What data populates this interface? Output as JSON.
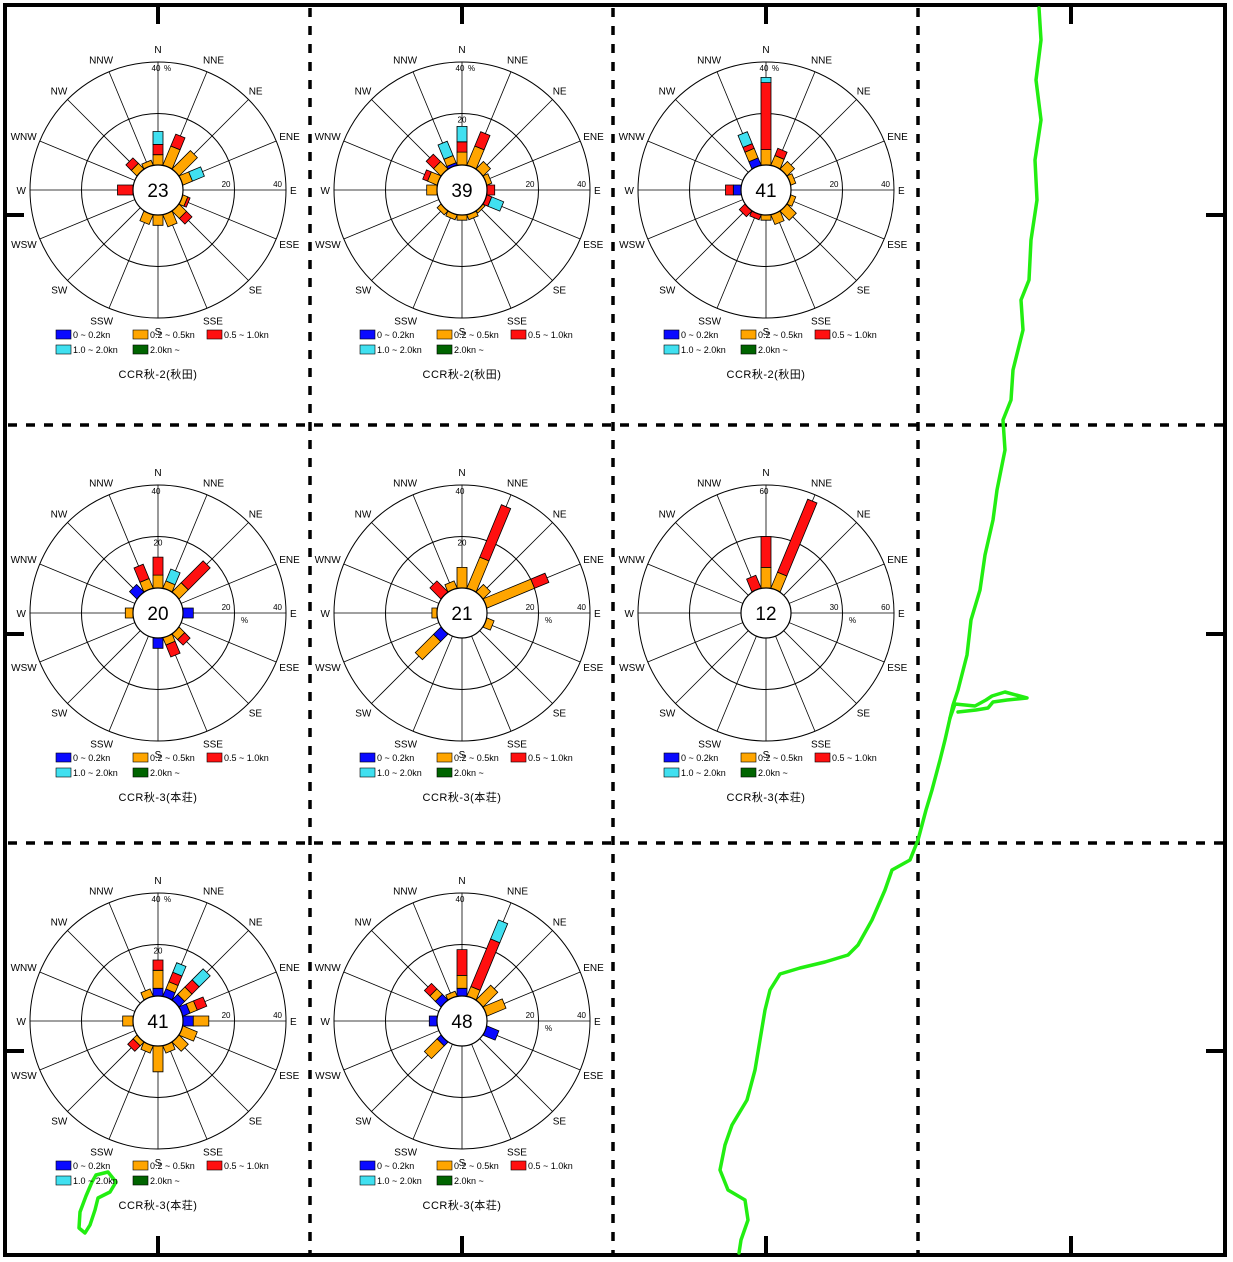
{
  "colors": {
    "frame": "#000000",
    "coast": "#22ee11",
    "classes": [
      "#0a0aff",
      "#ffa500",
      "#ff1010",
      "#40e0f0",
      "#006400"
    ]
  },
  "legend": {
    "items": [
      "0 ~ 0.2kn",
      "0.2 ~ 0.5kn",
      "0.5 ~ 1.0kn",
      "1.0 ~ 2.0kn",
      "2.0kn ~"
    ]
  },
  "directions": [
    "N",
    "NNE",
    "NE",
    "ENE",
    "E",
    "ESE",
    "SE",
    "SSE",
    "S",
    "SSW",
    "SW",
    "WSW",
    "W",
    "WNW",
    "NW",
    "NNW"
  ],
  "chart_data": [
    {
      "type": "wind-rose",
      "station": "CCR秋-2(秋田)",
      "center": "23",
      "rmax": 40,
      "ticks": [
        "20",
        "40"
      ],
      "ticks_top": [
        "40"
      ],
      "unit": "%",
      "unit_pos": "top",
      "series": [
        [
          0,
          0,
          0,
          0,
          0,
          0,
          0,
          0,
          0,
          0,
          0,
          0,
          0,
          0,
          0,
          0
        ],
        [
          4,
          8,
          10,
          4,
          0,
          2,
          4,
          5,
          4,
          4,
          0,
          0,
          0,
          0,
          3,
          2
        ],
        [
          4,
          5,
          0,
          0,
          0,
          1,
          3,
          0,
          0,
          0,
          0,
          0,
          6,
          0,
          3,
          0
        ],
        [
          5,
          0,
          0,
          5,
          0,
          0,
          0,
          0,
          0,
          0,
          0,
          0,
          0,
          0,
          0,
          0
        ],
        [
          0,
          0,
          0,
          0,
          0,
          0,
          0,
          0,
          0,
          0,
          0,
          0,
          0,
          0,
          0,
          0
        ]
      ]
    },
    {
      "type": "wind-rose",
      "station": "CCR秋-2(秋田)",
      "center": "39",
      "rmax": 40,
      "ticks": [
        "20",
        "40"
      ],
      "ticks_top": [
        "20",
        "40"
      ],
      "unit": "%",
      "unit_pos": "top",
      "series": [
        [
          0,
          0,
          0,
          0,
          0,
          0,
          0,
          0,
          0,
          0,
          0,
          0,
          0,
          0,
          0,
          1
        ],
        [
          5,
          8,
          4,
          2,
          0,
          0,
          1,
          2,
          2,
          2,
          2,
          0,
          4,
          4,
          4,
          3
        ],
        [
          4,
          6,
          0,
          0,
          3,
          2,
          0,
          0,
          0,
          0,
          0,
          0,
          0,
          2,
          4,
          0
        ],
        [
          6,
          0,
          0,
          0,
          0,
          5,
          0,
          0,
          0,
          0,
          0,
          0,
          0,
          0,
          0,
          6
        ],
        [
          0,
          0,
          0,
          0,
          0,
          0,
          0,
          0,
          0,
          0,
          0,
          0,
          0,
          0,
          0,
          0
        ]
      ]
    },
    {
      "type": "wind-rose",
      "station": "CCR秋-2(秋田)",
      "center": "41",
      "rmax": 40,
      "ticks": [
        "20",
        "40"
      ],
      "ticks_top": [
        "40"
      ],
      "unit": "%",
      "unit_pos": "top",
      "series": [
        [
          0,
          0,
          0,
          0,
          0,
          0,
          0,
          0,
          0,
          0,
          0,
          0,
          3,
          0,
          0,
          3
        ],
        [
          6,
          4,
          4,
          2,
          0,
          2,
          5,
          4,
          2,
          0,
          0,
          0,
          0,
          0,
          0,
          4
        ],
        [
          26,
          3,
          0,
          0,
          0,
          0,
          0,
          0,
          0,
          2,
          3,
          0,
          3,
          0,
          0,
          2
        ],
        [
          2,
          0,
          0,
          0,
          0,
          0,
          0,
          0,
          0,
          0,
          0,
          0,
          0,
          0,
          0,
          5
        ],
        [
          0,
          0,
          0,
          0,
          0,
          0,
          0,
          0,
          0,
          0,
          0,
          0,
          0,
          0,
          0,
          0
        ]
      ]
    },
    {
      "type": "wind-rose",
      "station": "CCR秋-3(本荘)",
      "center": "20",
      "rmax": 40,
      "ticks": [
        "20",
        "40"
      ],
      "ticks_top": [
        "20",
        "40"
      ],
      "unit": "%",
      "unit_pos": "right",
      "series": [
        [
          0,
          0,
          0,
          0,
          4,
          0,
          0,
          0,
          4,
          0,
          0,
          0,
          0,
          0,
          4,
          0
        ],
        [
          5,
          3,
          5,
          0,
          0,
          0,
          3,
          3,
          0,
          0,
          0,
          0,
          3,
          0,
          0,
          4
        ],
        [
          7,
          0,
          12,
          0,
          0,
          0,
          3,
          5,
          0,
          0,
          0,
          0,
          0,
          0,
          0,
          6
        ],
        [
          0,
          5,
          0,
          0,
          0,
          0,
          0,
          0,
          0,
          0,
          0,
          0,
          0,
          0,
          0,
          0
        ],
        [
          0,
          0,
          0,
          0,
          0,
          0,
          0,
          0,
          0,
          0,
          0,
          0,
          0,
          0,
          0,
          0
        ]
      ]
    },
    {
      "type": "wind-rose",
      "station": "CCR秋-3(本荘)",
      "center": "21",
      "rmax": 40,
      "ticks": [
        "20",
        "40"
      ],
      "ticks_top": [
        "20",
        "40"
      ],
      "unit": "%",
      "unit_pos": "right",
      "series": [
        [
          0,
          0,
          0,
          0,
          0,
          0,
          0,
          0,
          0,
          0,
          4,
          0,
          0,
          0,
          0,
          0
        ],
        [
          8,
          13,
          4,
          20,
          0,
          3,
          0,
          0,
          0,
          0,
          10,
          0,
          2,
          0,
          0,
          3
        ],
        [
          0,
          22,
          0,
          6,
          0,
          0,
          0,
          0,
          0,
          0,
          0,
          0,
          0,
          0,
          6,
          0
        ],
        [
          0,
          0,
          0,
          0,
          0,
          0,
          0,
          0,
          0,
          0,
          0,
          0,
          0,
          0,
          0,
          0
        ],
        [
          0,
          0,
          0,
          0,
          0,
          0,
          0,
          0,
          0,
          0,
          0,
          0,
          0,
          0,
          0,
          0
        ]
      ]
    },
    {
      "type": "wind-rose",
      "station": "CCR秋-3(本荘)",
      "center": "12",
      "rmax": 60,
      "ticks": [
        "30",
        "60"
      ],
      "ticks_top": [
        "60"
      ],
      "unit": "%",
      "unit_pos": "right",
      "series": [
        [
          0,
          0,
          0,
          0,
          0,
          0,
          0,
          0,
          0,
          0,
          0,
          0,
          0,
          0,
          0,
          0
        ],
        [
          12,
          10,
          0,
          0,
          0,
          0,
          0,
          0,
          0,
          0,
          0,
          0,
          0,
          0,
          0,
          0
        ],
        [
          18,
          46,
          0,
          0,
          0,
          0,
          0,
          0,
          0,
          0,
          0,
          0,
          0,
          0,
          0,
          8
        ],
        [
          0,
          0,
          0,
          0,
          0,
          0,
          0,
          0,
          0,
          0,
          0,
          0,
          0,
          0,
          0,
          0
        ],
        [
          0,
          0,
          0,
          0,
          0,
          0,
          0,
          0,
          0,
          0,
          0,
          0,
          0,
          0,
          0,
          0
        ]
      ]
    },
    {
      "type": "wind-rose",
      "station": "CCR秋-3(本荘)",
      "center": "41",
      "rmax": 40,
      "ticks": [
        "20",
        "40"
      ],
      "ticks_top": [
        "20",
        "40"
      ],
      "unit": "%",
      "unit_pos": "top",
      "series": [
        [
          3,
          3,
          3,
          3,
          4,
          0,
          0,
          0,
          0,
          0,
          0,
          0,
          0,
          0,
          0,
          0
        ],
        [
          7,
          3,
          4,
          3,
          6,
          6,
          5,
          3,
          10,
          3,
          2,
          0,
          4,
          0,
          0,
          3
        ],
        [
          4,
          4,
          4,
          4,
          0,
          0,
          0,
          0,
          0,
          0,
          3,
          0,
          0,
          0,
          0,
          0
        ],
        [
          0,
          4,
          6,
          0,
          0,
          0,
          0,
          0,
          0,
          0,
          0,
          0,
          0,
          0,
          0,
          0
        ],
        [
          0,
          0,
          0,
          0,
          0,
          0,
          0,
          0,
          0,
          0,
          0,
          0,
          0,
          0,
          0,
          0
        ]
      ]
    },
    {
      "type": "wind-rose",
      "station": "CCR秋-3(本荘)",
      "center": "48",
      "rmax": 40,
      "ticks": [
        "20",
        "40"
      ],
      "ticks_top": [
        "40"
      ],
      "unit": "%",
      "unit_pos": "right",
      "series": [
        [
          3,
          0,
          0,
          0,
          0,
          5,
          0,
          0,
          0,
          0,
          2,
          0,
          3,
          0,
          3,
          0
        ],
        [
          5,
          4,
          8,
          8,
          0,
          0,
          0,
          0,
          0,
          0,
          7,
          0,
          0,
          0,
          3,
          2
        ],
        [
          10,
          20,
          0,
          0,
          0,
          0,
          0,
          0,
          0,
          0,
          0,
          0,
          0,
          0,
          3,
          0
        ],
        [
          0,
          8,
          0,
          0,
          0,
          0,
          0,
          0,
          0,
          0,
          0,
          0,
          0,
          0,
          0,
          0
        ],
        [
          0,
          0,
          0,
          0,
          0,
          0,
          0,
          0,
          0,
          0,
          0,
          0,
          0,
          0,
          0,
          0
        ]
      ]
    }
  ]
}
